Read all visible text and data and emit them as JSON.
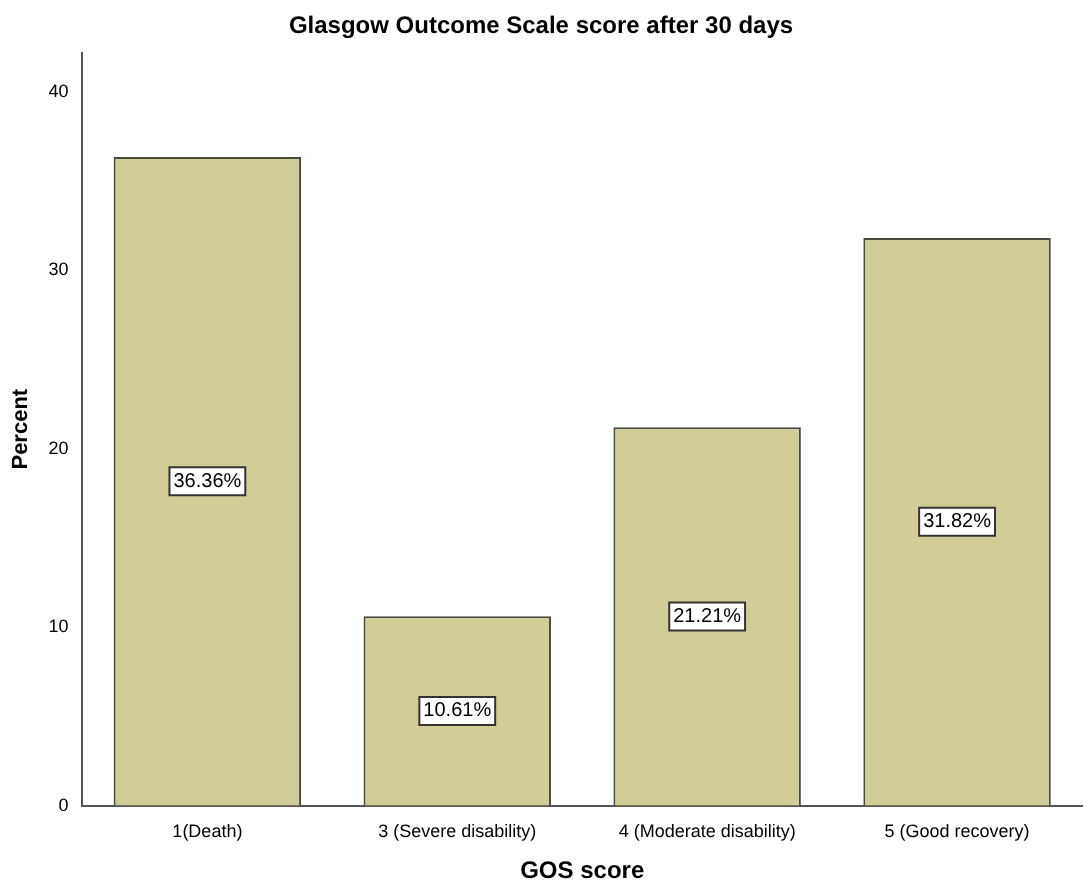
{
  "chart_data": {
    "type": "bar",
    "title": "Glasgow Outcome Scale score after 30 days",
    "xlabel": "GOS score",
    "ylabel": "Percent",
    "categories": [
      "1(Death)",
      "3 (Severe disability)",
      "4 (Moderate disability)",
      "5 (Good recovery)"
    ],
    "values": [
      36.36,
      10.61,
      21.21,
      31.82
    ],
    "value_labels": [
      "36.36%",
      "10.61%",
      "21.21%",
      "31.82%"
    ],
    "color": "#d2cd96",
    "ylim": [
      0,
      42.2
    ],
    "yticks": [
      0,
      10,
      20,
      30,
      40
    ],
    "grid": false,
    "legend": false
  }
}
